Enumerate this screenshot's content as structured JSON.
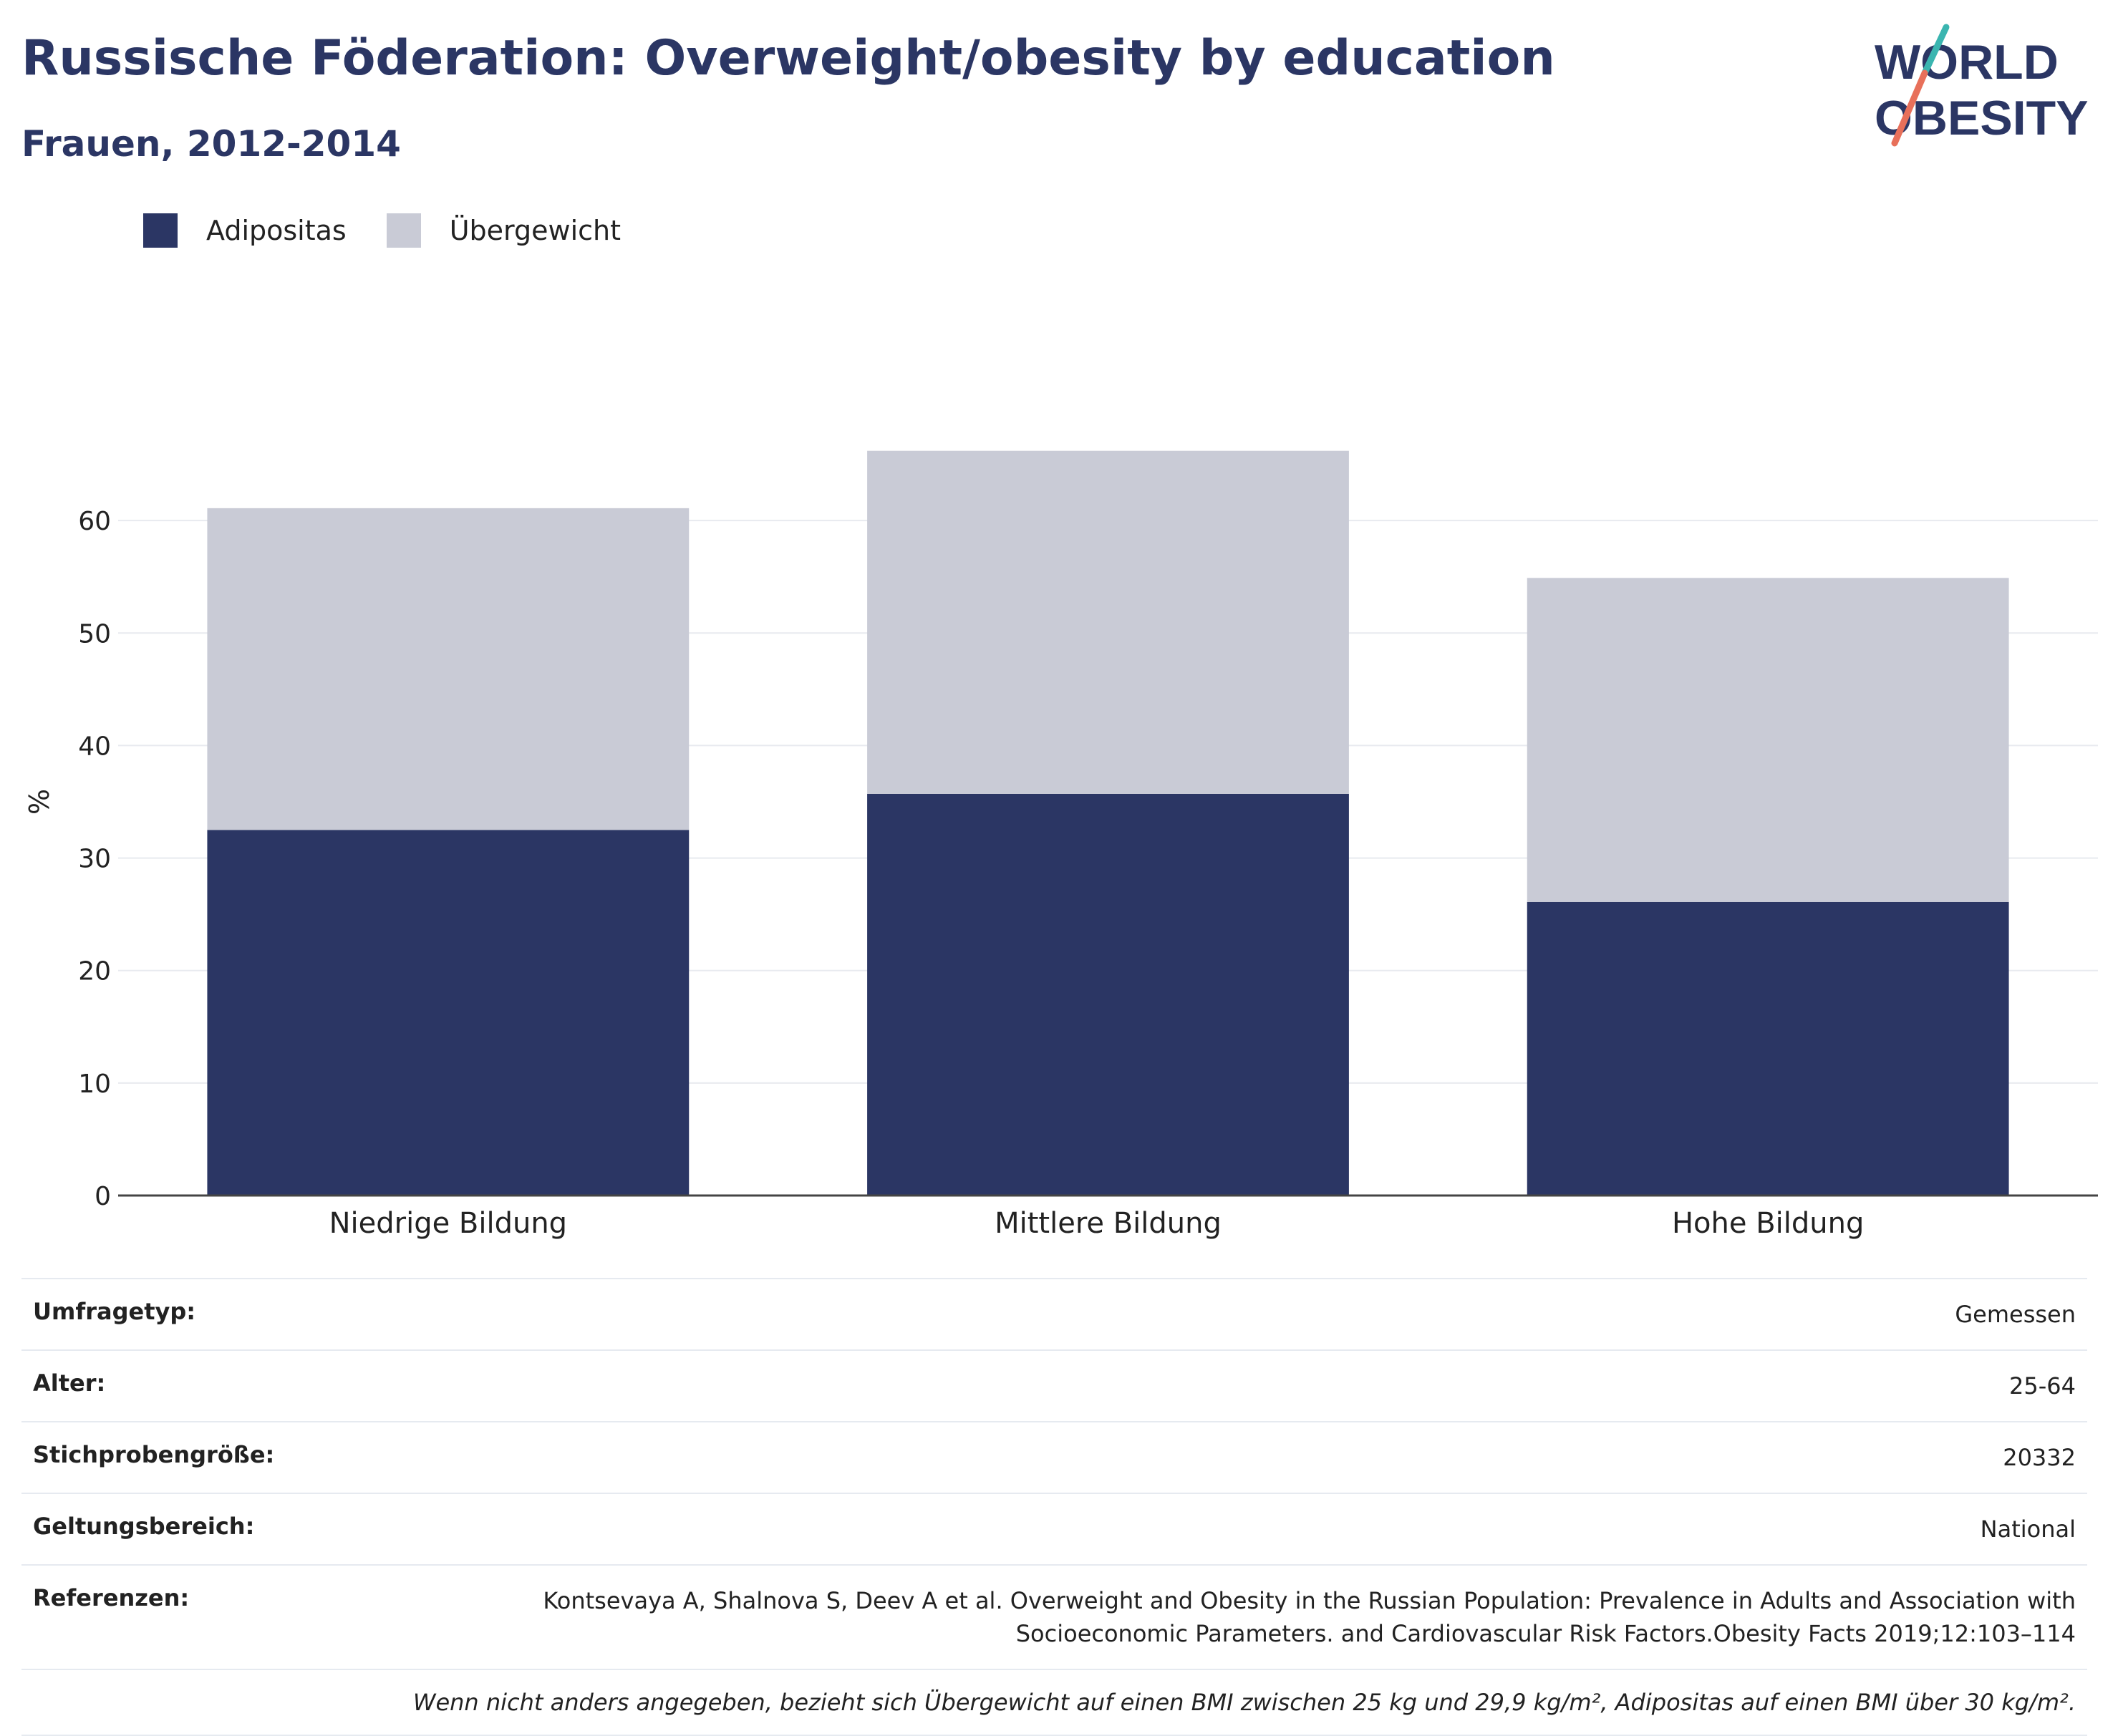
{
  "header": {
    "title": "Russische Föderation: Overweight/obesity by education",
    "subtitle": "Frauen, 2012-2014"
  },
  "logo": {
    "line1": "WORLD",
    "line2": "OBESITY"
  },
  "colors": {
    "obesity": "#2b3664",
    "overweight": "#c9cbd6",
    "title": "#2b3664",
    "logo_teal": "#3ab5b0",
    "logo_coral": "#e8705a"
  },
  "chart_data": {
    "type": "bar",
    "stacked": true,
    "categories": [
      "Niedrige Bildung",
      "Mittlere Bildung",
      "Hohe Bildung"
    ],
    "series": [
      {
        "name": "Adipositas",
        "values": [
          32.5,
          35.7,
          26.1
        ]
      },
      {
        "name": "Übergewicht",
        "values": [
          28.6,
          30.5,
          28.8
        ]
      }
    ],
    "ylabel": "%",
    "yticks": [
      0,
      10,
      20,
      30,
      40,
      50,
      60
    ],
    "ylim": [
      0,
      70
    ],
    "grid": true,
    "legend_position": "top-left"
  },
  "meta": {
    "rows": [
      {
        "key": "Umfragetyp:",
        "value": "Gemessen"
      },
      {
        "key": "Alter:",
        "value": "25-64"
      },
      {
        "key": "Stichprobengröße:",
        "value": "20332"
      },
      {
        "key": "Geltungsbereich:",
        "value": "National"
      }
    ],
    "references_key": "Referenzen:",
    "references_line1": "Kontsevaya A, Shalnova S, Deev A et al. Overweight and Obesity in the Russian Population: Prevalence in Adults and Association with",
    "references_line2": "Socioeconomic Parameters. and Cardiovascular Risk Factors.Obesity Facts 2019;12:103–114",
    "note": "Wenn nicht anders angegeben, bezieht sich Übergewicht auf einen BMI zwischen 25 kg und 29,9 kg/m², Adipositas auf einen BMI über 30 kg/m²."
  }
}
